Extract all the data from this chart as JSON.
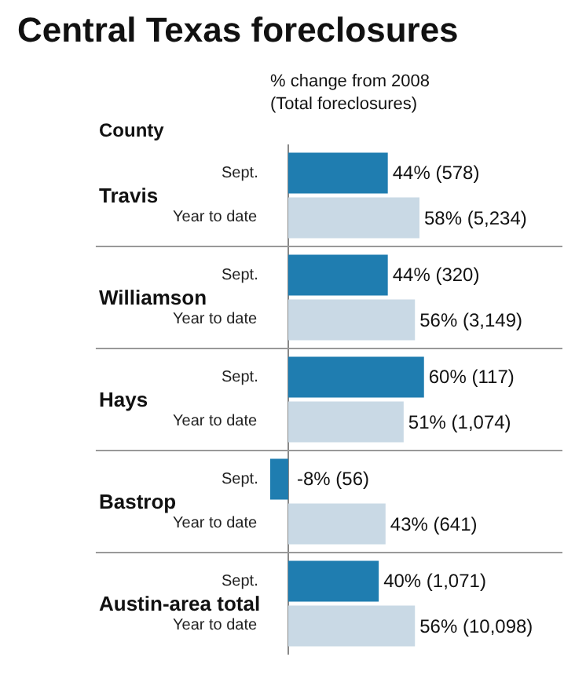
{
  "chart_data": {
    "type": "bar",
    "orientation": "horizontal",
    "title": "Central Texas foreclosures",
    "subtitle": "% change from 2008 (Total foreclosures)",
    "ylabel": "County",
    "categories": [
      "Travis",
      "Williamson",
      "Hays",
      "Bastrop",
      "Austin-area total"
    ],
    "series": [
      {
        "name": "Sept.",
        "color": "#1f7db0",
        "values": [
          44,
          44,
          60,
          -8,
          40
        ],
        "value_labels": [
          "44% (578)",
          "44% (320)",
          "60% (117)",
          "-8% (56)",
          "40% (1,071)"
        ]
      },
      {
        "name": "Year to date",
        "color": "#c9d9e5",
        "values": [
          58,
          56,
          51,
          43,
          56
        ],
        "value_labels": [
          "58% (5,234)",
          "56% (3,149)",
          "51% (1,074)",
          "43% (641)",
          "56% (10,098)"
        ]
      }
    ],
    "grid": false,
    "legend": false
  }
}
